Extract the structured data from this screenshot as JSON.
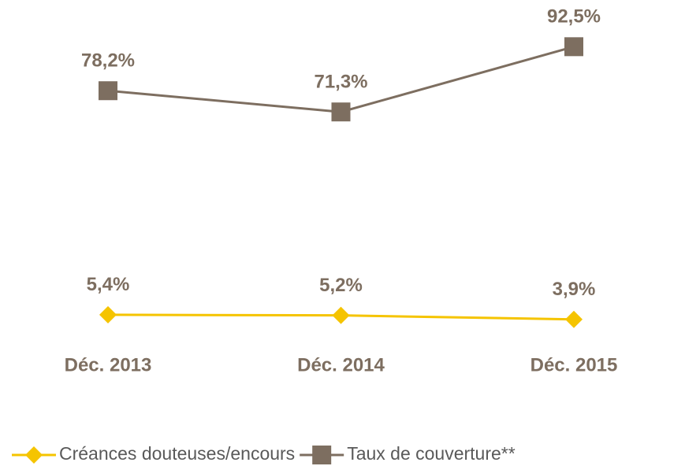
{
  "chart_data": {
    "type": "line",
    "categories": [
      "Déc. 2013",
      "Déc. 2014",
      "Déc. 2015"
    ],
    "series": [
      {
        "name": "Créances douteuses/encours",
        "color": "#f5c400",
        "marker": "diamond",
        "values": [
          5.4,
          5.2,
          3.9
        ],
        "value_labels": [
          "5,4%",
          "5,2%",
          "3,9%"
        ]
      },
      {
        "name": "Taux de couverture**",
        "color": "#7d6e60",
        "marker": "square",
        "values": [
          78.2,
          71.3,
          92.5
        ],
        "value_labels": [
          "78,2%",
          "71,3%",
          "92,5%"
        ]
      }
    ],
    "ylim": [
      0,
      100
    ],
    "grid": false,
    "legend": "bottom"
  }
}
